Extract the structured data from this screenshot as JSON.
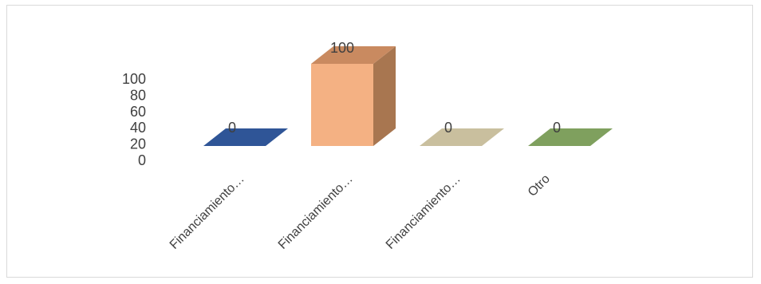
{
  "chart_data": {
    "type": "bar",
    "style": "3d-column",
    "categories": [
      "Financiamiento…",
      "Financiamiento…",
      "Financiamiento…",
      "Otro"
    ],
    "values": [
      0,
      100,
      0,
      0
    ],
    "data_labels": [
      "0",
      "100",
      "0",
      "0"
    ],
    "y_ticks": [
      "0",
      "20",
      "40",
      "60",
      "80",
      "100"
    ],
    "ylim": [
      0,
      100
    ],
    "grid": false,
    "legend": "none",
    "colors": {
      "bars": [
        "#2f5597",
        "#f4b183",
        "#c9bf9e",
        "#7fa05e"
      ],
      "bar_sides": [
        "#1f3a6a",
        "#a87650",
        "#9b9275",
        "#5b7a40"
      ],
      "bar_tops": [
        "#2f5597",
        "#c98a60",
        "#c9bf9e",
        "#7fa05e"
      ],
      "text": "#404040"
    }
  }
}
